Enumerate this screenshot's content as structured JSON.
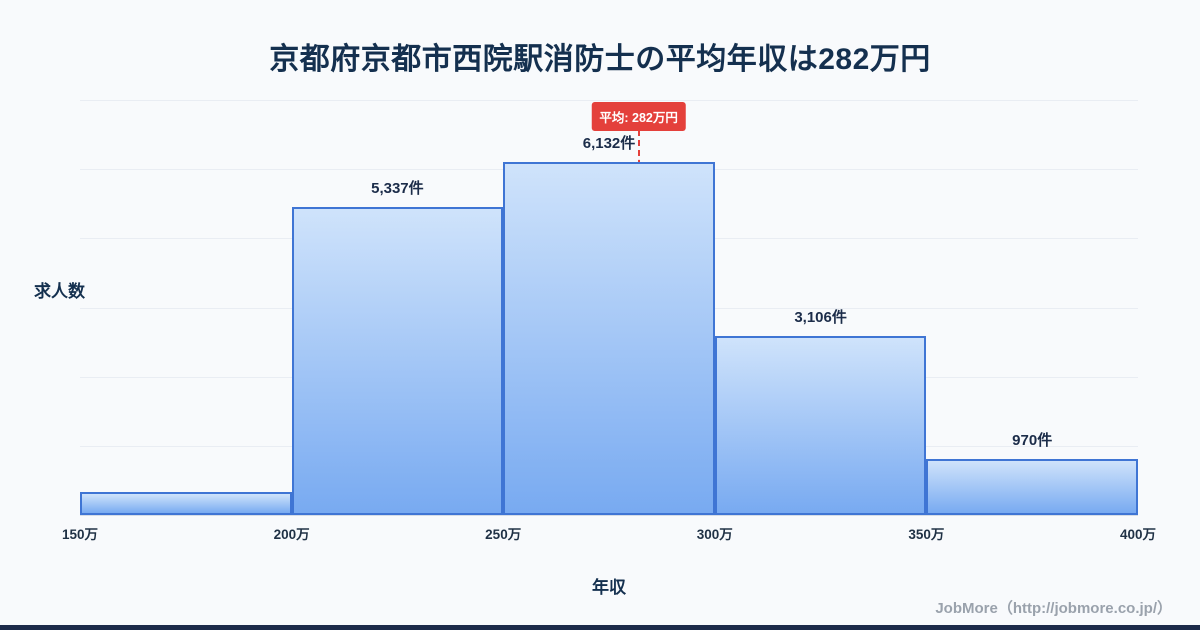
{
  "title": "京都府京都市西院駅消防士の平均年収は282万円",
  "y_axis_label": "求人数",
  "x_axis_label": "年収",
  "footer": "JobMore（http://jobmore.co.jp/）",
  "colors": {
    "background": "#f8fafc",
    "title": "#14304f",
    "bar_border": "#3f75d4",
    "bar_gradient_top": "#cfe3fb",
    "bar_gradient_bottom": "#78aaf1",
    "average_red": "#e4403b",
    "grid": "#e9edf3",
    "footer_gray": "#9aa2ac",
    "bottom_bar": "#1c2b4a"
  },
  "chart_data": {
    "type": "bar",
    "subtype": "histogram",
    "title": "京都府京都市西院駅消防士の平均年収は282万円",
    "xlabel": "年収",
    "ylabel": "求人数",
    "grid": "horizontal",
    "x_range": [
      150,
      400
    ],
    "x_ticks": [
      "150万",
      "200万",
      "250万",
      "300万",
      "350万",
      "400万"
    ],
    "ylim": [
      0,
      7200
    ],
    "gridline_count": 7,
    "bins": [
      {
        "range": "150万-200万",
        "value": 400,
        "label": ""
      },
      {
        "range": "200万-250万",
        "value": 5337,
        "label": "5,337件"
      },
      {
        "range": "250万-300万",
        "value": 6132,
        "label": "6,132件"
      },
      {
        "range": "300万-350万",
        "value": 3106,
        "label": "3,106件"
      },
      {
        "range": "350万-400万",
        "value": 970,
        "label": "970件"
      }
    ],
    "average": {
      "x_value": 282,
      "label": "平均: 282万円"
    }
  }
}
